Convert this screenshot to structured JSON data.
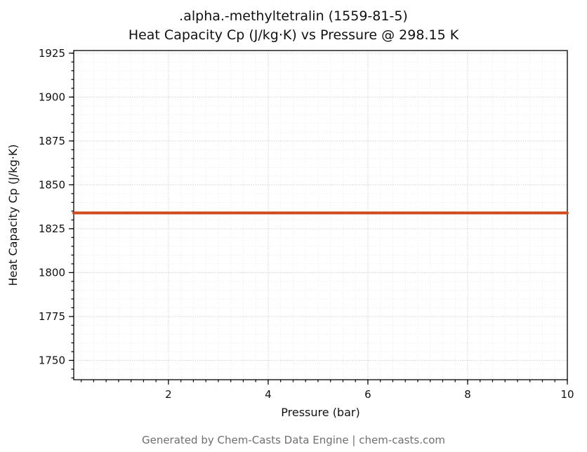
{
  "footer": {
    "text": "Generated by Chem-Casts Data Engine | chem-casts.com"
  },
  "chart_data": {
    "type": "line",
    "title_line1": ".alpha.-methyltetralin (1559-81-5)",
    "title_line2": "Heat Capacity Cp (J/kg·K) vs Pressure @ 298.15 K",
    "xlabel": "Pressure (bar)",
    "ylabel": "Heat Capacity Cp (J/kg·K)",
    "xlim": [
      0.1,
      10
    ],
    "ylim": [
      1739,
      1926.5
    ],
    "x_ticks": [
      2,
      4,
      6,
      8,
      10
    ],
    "y_ticks": [
      1750,
      1775,
      1800,
      1825,
      1850,
      1875,
      1900,
      1925
    ],
    "x_minor_step": 0.25,
    "y_minor_step": 5,
    "grid": true,
    "legend": "none",
    "series": [
      {
        "name": "Heat Capacity Cp",
        "color": "#d1491e",
        "x": [
          0.1,
          1,
          2,
          3,
          4,
          5,
          6,
          7,
          8,
          9,
          10
        ],
        "y": [
          1834,
          1834,
          1834,
          1834,
          1834,
          1834,
          1834,
          1834,
          1834,
          1834,
          1834
        ]
      }
    ]
  }
}
